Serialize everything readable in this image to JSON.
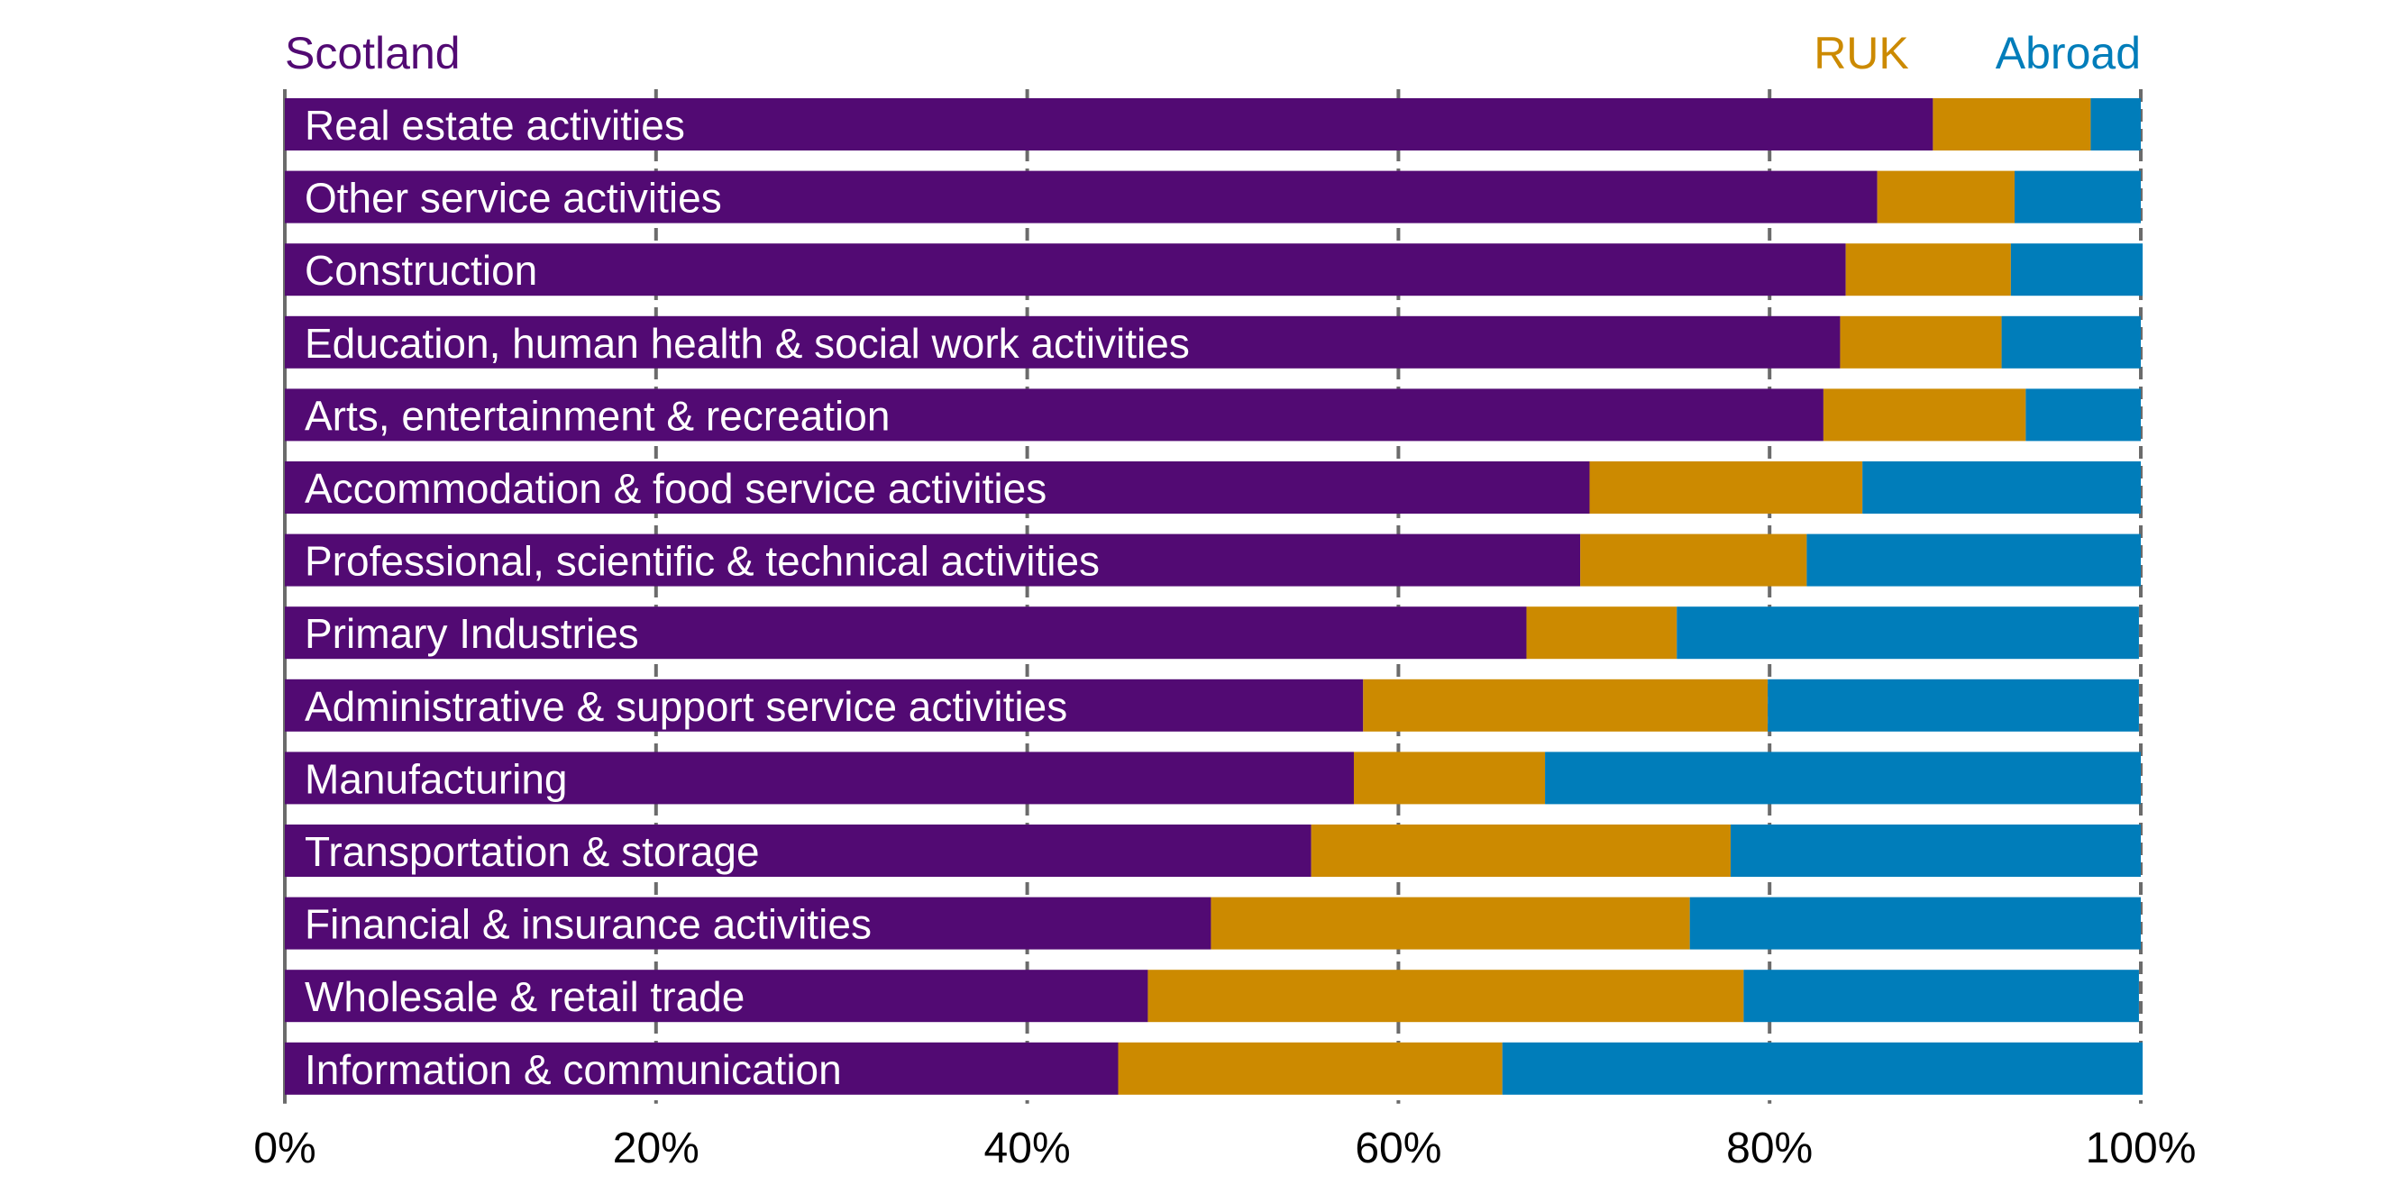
{
  "chart_data": {
    "type": "bar",
    "orientation": "horizontal",
    "stacked": true,
    "title": "",
    "xlabel": "",
    "ylabel": "",
    "xlim": [
      0,
      100
    ],
    "x_ticks": [
      "0%",
      "20%",
      "40%",
      "60%",
      "80%",
      "100%"
    ],
    "grid": "vertical dashed at 20% intervals",
    "legend_placement": "top",
    "categories": [
      "Real estate activities",
      "Other service activities",
      "Construction",
      "Education, human health & social work activities",
      "Arts, entertainment & recreation",
      "Accommodation & food service activities",
      "Professional, scientific & technical activities",
      "Primary Industries",
      "Administrative & support service activities",
      "Manufacturing",
      "Transportation & storage",
      "Financial & insurance activities",
      "Wholesale & retail trade",
      "Information & communication"
    ],
    "series": [
      {
        "name": "Scotland",
        "color": "#520a73",
        "values": [
          88.8,
          85.8,
          84.1,
          83.8,
          82.9,
          70.3,
          69.8,
          66.9,
          58.1,
          57.6,
          55.3,
          49.9,
          46.5,
          44.9
        ]
      },
      {
        "name": "RUK",
        "color": "#cc8a00",
        "values": [
          8.5,
          7.4,
          8.9,
          8.7,
          10.9,
          14.7,
          12.2,
          8.1,
          21.8,
          10.3,
          22.6,
          25.8,
          32.1,
          20.7
        ]
      },
      {
        "name": "Abroad",
        "color": "#007dba",
        "values": [
          2.7,
          6.8,
          7.1,
          7.5,
          6.2,
          15.0,
          18.0,
          24.9,
          20.0,
          32.1,
          22.1,
          24.3,
          21.3,
          34.5
        ]
      }
    ]
  }
}
